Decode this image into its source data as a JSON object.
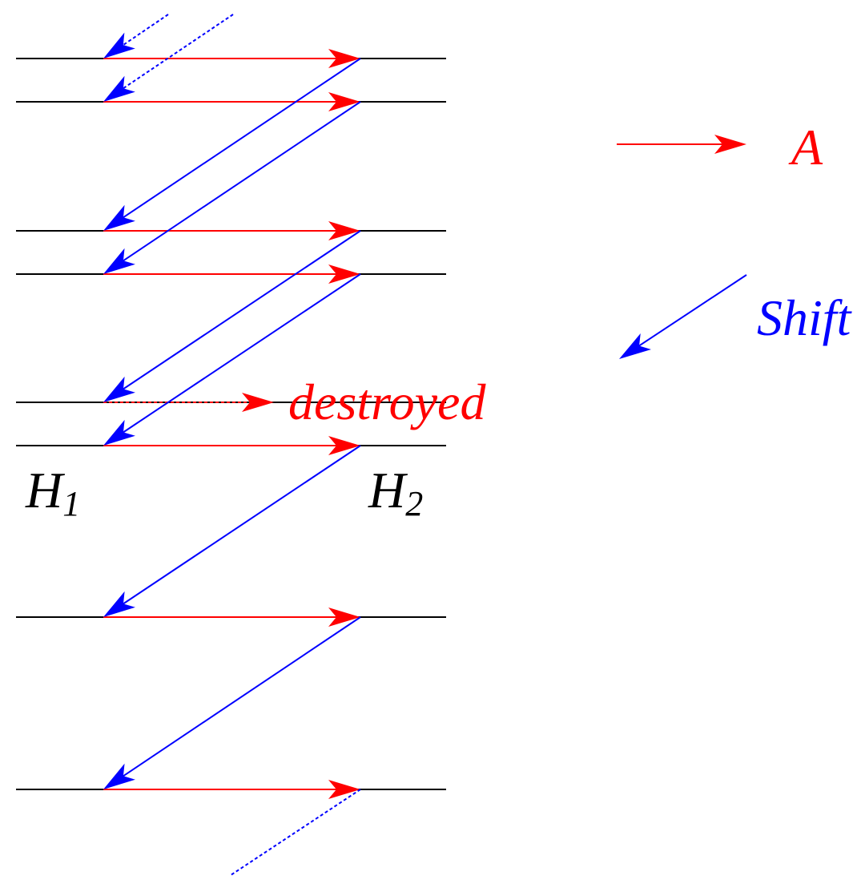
{
  "colors": {
    "line": "#000000",
    "a_arrow": "#ff0000",
    "shift_arrow": "#0000ff"
  },
  "labels": {
    "h1": "H",
    "h1_sub": "1",
    "h2": "H",
    "h2_sub": "2",
    "destroyed": "destroyed",
    "legend_a": "A",
    "legend_shift": "Shift"
  }
}
